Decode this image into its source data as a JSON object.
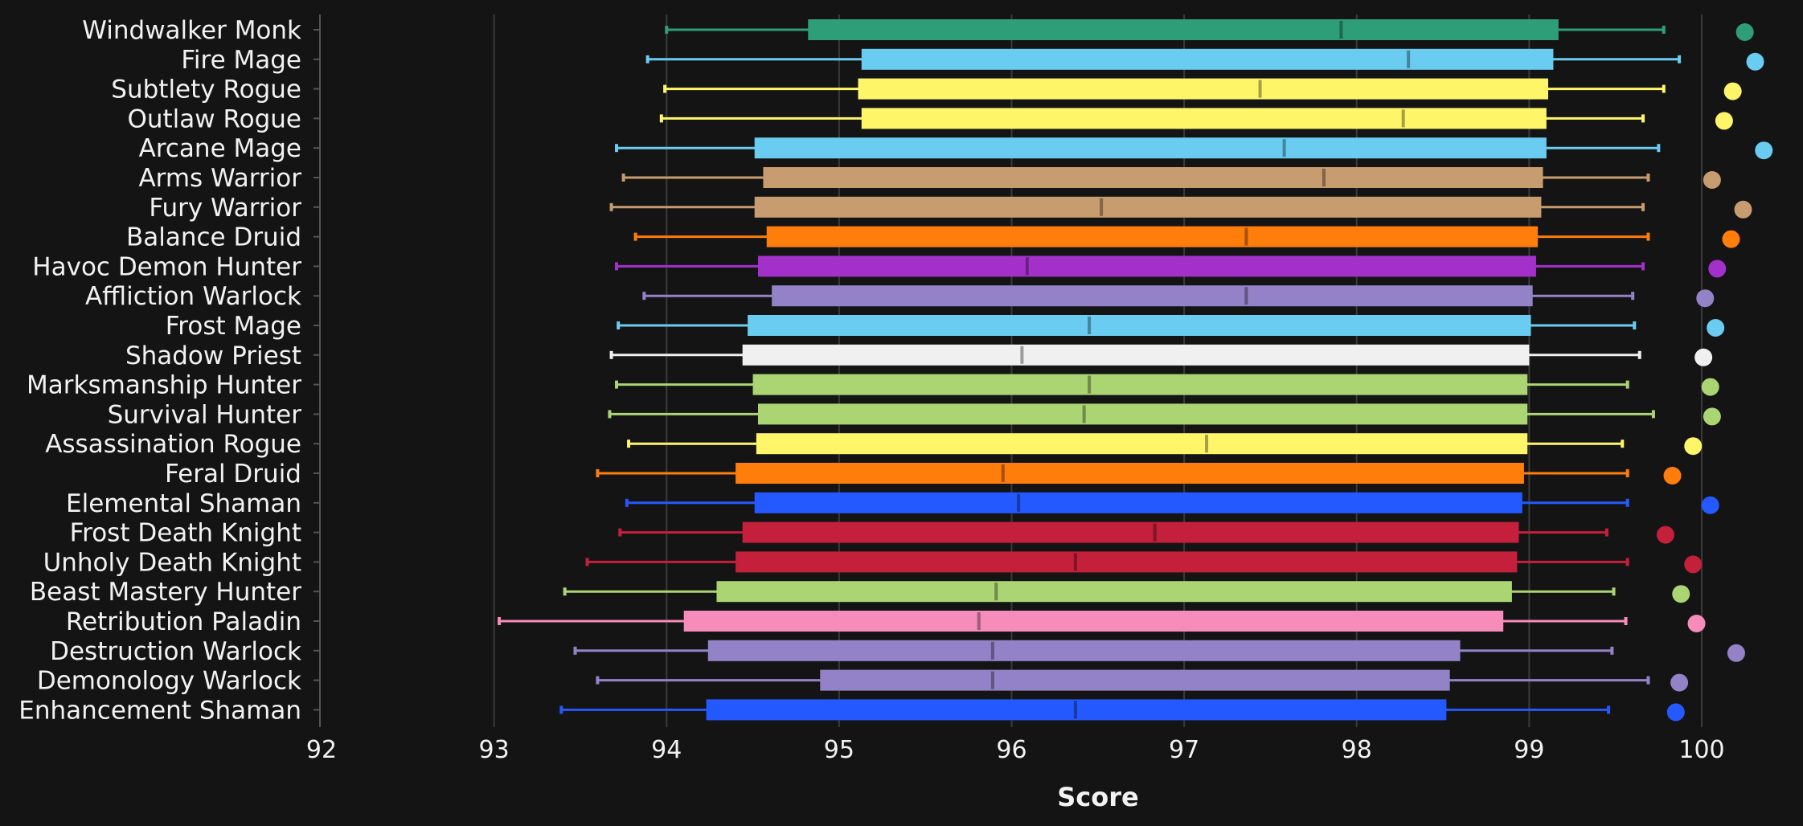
{
  "chart_data": {
    "type": "boxplot",
    "title": "",
    "xlabel": "Score",
    "ylabel": "",
    "xlim": [
      92,
      100
    ],
    "xticks": [
      92,
      93,
      94,
      95,
      96,
      97,
      98,
      99,
      100
    ],
    "grid": "vertical",
    "background": "#141414",
    "series": [
      {
        "category": "Windwalker Monk",
        "color": "#2e9e78",
        "min": 94.0,
        "q1": 94.82,
        "median": 97.91,
        "q3": 99.17,
        "max": 99.78,
        "outlier": 100.25
      },
      {
        "category": "Fire Mage",
        "color": "#69ccf0",
        "min": 93.89,
        "q1": 95.13,
        "median": 98.3,
        "q3": 99.14,
        "max": 99.87,
        "outlier": 100.31
      },
      {
        "category": "Subtlety Rogue",
        "color": "#fff569",
        "min": 93.99,
        "q1": 95.11,
        "median": 97.44,
        "q3": 99.11,
        "max": 99.78,
        "outlier": 100.18
      },
      {
        "category": "Outlaw Rogue",
        "color": "#fff569",
        "min": 93.97,
        "q1": 95.13,
        "median": 98.27,
        "q3": 99.1,
        "max": 99.66,
        "outlier": 100.13
      },
      {
        "category": "Arcane Mage",
        "color": "#69ccf0",
        "min": 93.71,
        "q1": 94.51,
        "median": 97.58,
        "q3": 99.1,
        "max": 99.75,
        "outlier": 100.36
      },
      {
        "category": "Arms Warrior",
        "color": "#c79c6e",
        "min": 93.75,
        "q1": 94.56,
        "median": 97.81,
        "q3": 99.08,
        "max": 99.69,
        "outlier": 100.06
      },
      {
        "category": "Fury Warrior",
        "color": "#c79c6e",
        "min": 93.68,
        "q1": 94.51,
        "median": 96.52,
        "q3": 99.07,
        "max": 99.66,
        "outlier": 100.24
      },
      {
        "category": "Balance Druid",
        "color": "#ff7d0a",
        "min": 93.82,
        "q1": 94.58,
        "median": 97.36,
        "q3": 99.05,
        "max": 99.69,
        "outlier": 100.17
      },
      {
        "category": "Havoc Demon Hunter",
        "color": "#a330c9",
        "min": 93.71,
        "q1": 94.53,
        "median": 96.09,
        "q3": 99.04,
        "max": 99.66,
        "outlier": 100.09
      },
      {
        "category": "Affliction Warlock",
        "color": "#9482c9",
        "min": 93.87,
        "q1": 94.61,
        "median": 97.36,
        "q3": 99.02,
        "max": 99.6,
        "outlier": 100.02
      },
      {
        "category": "Frost Mage",
        "color": "#69ccf0",
        "min": 93.72,
        "q1": 94.47,
        "median": 96.45,
        "q3": 99.01,
        "max": 99.61,
        "outlier": 100.08
      },
      {
        "category": "Shadow Priest",
        "color": "#f0f0f0",
        "min": 93.68,
        "q1": 94.44,
        "median": 96.06,
        "q3": 99.0,
        "max": 99.64,
        "outlier": 100.01
      },
      {
        "category": "Marksmanship Hunter",
        "color": "#abd473",
        "min": 93.71,
        "q1": 94.5,
        "median": 96.45,
        "q3": 98.99,
        "max": 99.57,
        "outlier": 100.05
      },
      {
        "category": "Survival Hunter",
        "color": "#abd473",
        "min": 93.67,
        "q1": 94.53,
        "median": 96.42,
        "q3": 98.99,
        "max": 99.72,
        "outlier": 100.06
      },
      {
        "category": "Assassination Rogue",
        "color": "#fff569",
        "min": 93.78,
        "q1": 94.52,
        "median": 97.13,
        "q3": 98.99,
        "max": 99.54,
        "outlier": 99.95
      },
      {
        "category": "Feral Druid",
        "color": "#ff7d0a",
        "min": 93.6,
        "q1": 94.4,
        "median": 95.95,
        "q3": 98.97,
        "max": 99.57,
        "outlier": 99.83
      },
      {
        "category": "Elemental Shaman",
        "color": "#2459ff",
        "min": 93.77,
        "q1": 94.51,
        "median": 96.04,
        "q3": 98.96,
        "max": 99.57,
        "outlier": 100.05
      },
      {
        "category": "Frost Death Knight",
        "color": "#c41f3b",
        "min": 93.73,
        "q1": 94.44,
        "median": 96.83,
        "q3": 98.94,
        "max": 99.45,
        "outlier": 99.79
      },
      {
        "category": "Unholy Death Knight",
        "color": "#c41f3b",
        "min": 93.54,
        "q1": 94.4,
        "median": 96.37,
        "q3": 98.93,
        "max": 99.57,
        "outlier": 99.95
      },
      {
        "category": "Beast Mastery Hunter",
        "color": "#abd473",
        "min": 93.41,
        "q1": 94.29,
        "median": 95.91,
        "q3": 98.9,
        "max": 99.49,
        "outlier": 99.88
      },
      {
        "category": "Retribution Paladin",
        "color": "#f58cba",
        "min": 93.03,
        "q1": 94.1,
        "median": 95.81,
        "q3": 98.85,
        "max": 99.56,
        "outlier": 99.97
      },
      {
        "category": "Destruction Warlock",
        "color": "#9482c9",
        "min": 93.47,
        "q1": 94.24,
        "median": 95.89,
        "q3": 98.6,
        "max": 99.48,
        "outlier": 100.2
      },
      {
        "category": "Demonology Warlock",
        "color": "#9482c9",
        "min": 93.6,
        "q1": 94.89,
        "median": 95.89,
        "q3": 98.54,
        "max": 99.69,
        "outlier": 99.87
      },
      {
        "category": "Enhancement Shaman",
        "color": "#2459ff",
        "min": 93.39,
        "q1": 94.23,
        "median": 96.37,
        "q3": 98.52,
        "max": 99.46,
        "outlier": 99.85
      }
    ]
  }
}
